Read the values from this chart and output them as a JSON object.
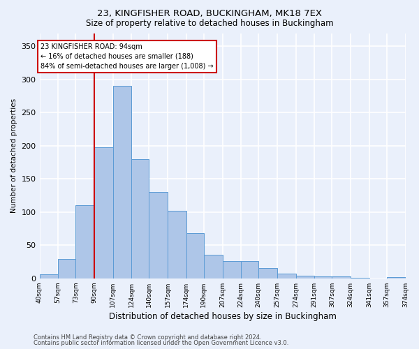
{
  "title1": "23, KINGFISHER ROAD, BUCKINGHAM, MK18 7EX",
  "title2": "Size of property relative to detached houses in Buckingham",
  "xlabel": "Distribution of detached houses by size in Buckingham",
  "ylabel": "Number of detached properties",
  "footer1": "Contains HM Land Registry data © Crown copyright and database right 2024.",
  "footer2": "Contains public sector information licensed under the Open Government Licence v3.0.",
  "annotation_title": "23 KINGFISHER ROAD: 94sqm",
  "annotation_line2": "← 16% of detached houses are smaller (188)",
  "annotation_line3": "84% of semi-detached houses are larger (1,008) →",
  "bar_color": "#aec6e8",
  "bar_edge_color": "#5b9bd5",
  "vline_color": "#cc0000",
  "vline_x": 90,
  "bins": [
    40,
    57,
    73,
    90,
    107,
    124,
    140,
    157,
    174,
    190,
    207,
    224,
    240,
    257,
    274,
    291,
    307,
    324,
    341,
    357,
    374
  ],
  "bar_heights": [
    6,
    29,
    110,
    198,
    291,
    180,
    130,
    102,
    68,
    36,
    26,
    26,
    16,
    7,
    4,
    3,
    3,
    1,
    0,
    2
  ],
  "ylim": [
    0,
    370
  ],
  "yticks": [
    0,
    50,
    100,
    150,
    200,
    250,
    300,
    350
  ],
  "background_color": "#eaf0fb",
  "grid_color": "#ffffff",
  "annotation_box_color": "#ffffff",
  "annotation_box_edge": "#cc0000"
}
